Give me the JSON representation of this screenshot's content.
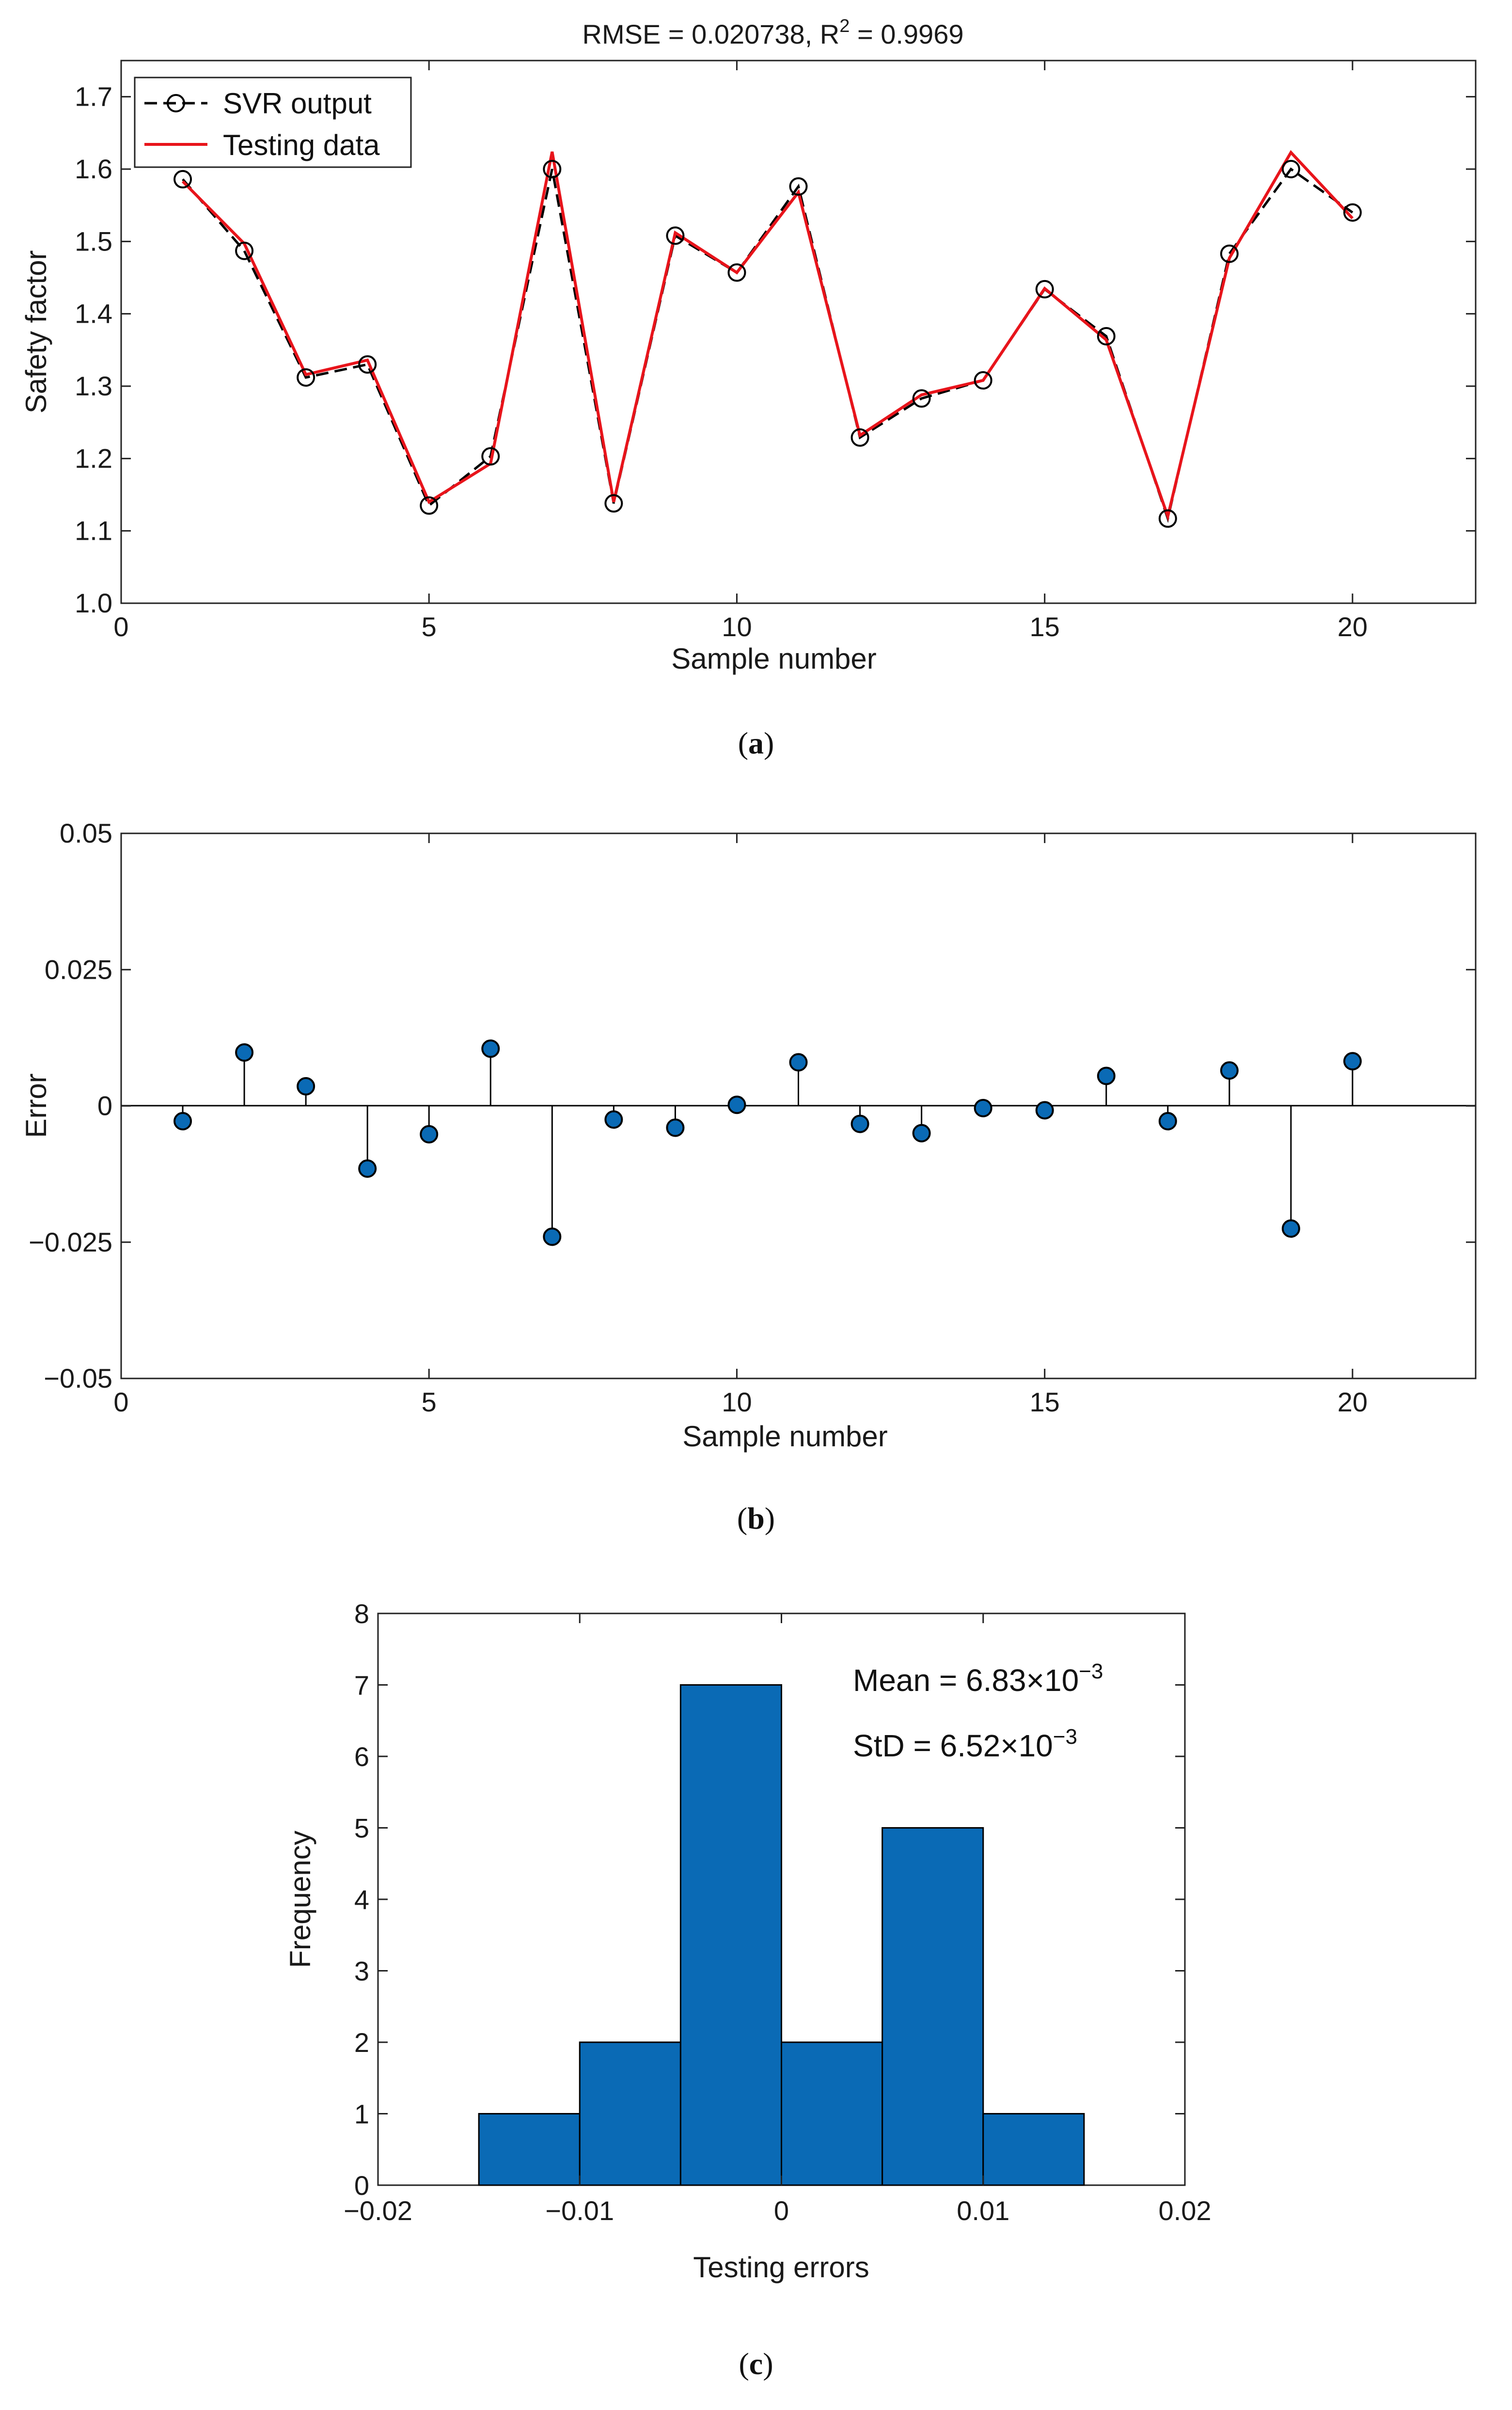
{
  "chart_data": [
    {
      "id": "a",
      "type": "line",
      "caption": "a",
      "title": "RMSE = 0.020738, R",
      "title_sup": "2",
      "title_tail": " = 0.9969",
      "xlabel": "Sample number",
      "ylabel": "Safety factor",
      "xlim": [
        0,
        22
      ],
      "ylim": [
        1.0,
        1.75
      ],
      "xticks": [
        0,
        5,
        10,
        15,
        20
      ],
      "yticks": [
        1.0,
        1.1,
        1.2,
        1.3,
        1.4,
        1.5,
        1.6,
        1.7
      ],
      "ytick_labels": [
        "1.0",
        "1.1",
        "1.2",
        "1.3",
        "1.4",
        "1.5",
        "1.6",
        "1.7"
      ],
      "legend_position": "top-left",
      "x": [
        1,
        2,
        3,
        4,
        5,
        6,
        7,
        8,
        9,
        10,
        11,
        12,
        13,
        14,
        15,
        16,
        17,
        18,
        19,
        20
      ],
      "series": [
        {
          "name": "SVR output",
          "style": "dashed-black-circles",
          "color": "#000000",
          "values": [
            1.586,
            1.487,
            1.312,
            1.33,
            1.135,
            1.203,
            1.6,
            1.138,
            1.508,
            1.457,
            1.576,
            1.229,
            1.283,
            1.308,
            1.434,
            1.369,
            1.117,
            1.483,
            1.6,
            1.54
          ]
        },
        {
          "name": "Testing data",
          "style": "solid-red",
          "color": "#e8141b",
          "values": [
            1.583,
            1.497,
            1.316,
            1.336,
            1.14,
            1.193,
            1.624,
            1.14,
            1.512,
            1.457,
            1.568,
            1.232,
            1.288,
            1.308,
            1.435,
            1.364,
            1.12,
            1.477,
            1.623,
            1.532
          ]
        }
      ]
    },
    {
      "id": "b",
      "type": "stem",
      "caption": "b",
      "xlabel": "Sample number",
      "ylabel": "Error",
      "xlim": [
        0,
        22
      ],
      "ylim": [
        -0.05,
        0.05
      ],
      "xticks": [
        0,
        5,
        10,
        15,
        20
      ],
      "yticks": [
        -0.05,
        -0.025,
        0,
        0.025,
        0.05
      ],
      "ytick_labels": [
        "−0.05",
        "−0.025",
        "0",
        "0.025",
        "0.05"
      ],
      "marker_color": "#0a6ab5",
      "x": [
        1,
        2,
        3,
        4,
        5,
        6,
        7,
        8,
        9,
        10,
        11,
        12,
        13,
        14,
        15,
        16,
        17,
        18,
        19,
        20
      ],
      "values": [
        -0.0028,
        0.0098,
        0.0036,
        -0.0115,
        -0.0052,
        0.0105,
        -0.024,
        -0.0025,
        -0.004,
        0.0002,
        0.008,
        -0.0033,
        -0.005,
        -0.0004,
        -0.0008,
        0.0055,
        -0.0028,
        0.0065,
        -0.0225,
        0.0082
      ]
    },
    {
      "id": "c",
      "type": "histogram",
      "caption": "c",
      "xlabel": "Testing errors",
      "ylabel": "Frequency",
      "xlim": [
        -0.02,
        0.02
      ],
      "ylim": [
        0,
        8
      ],
      "xticks": [
        -0.02,
        -0.01,
        0,
        0.01,
        0.02
      ],
      "xtick_labels": [
        "−0.02",
        "−0.01",
        "0",
        "0.01",
        "0.02"
      ],
      "yticks": [
        0,
        1,
        2,
        3,
        4,
        5,
        6,
        7,
        8
      ],
      "ytick_labels": [
        "0",
        "1",
        "2",
        "3",
        "4",
        "5",
        "6",
        "7",
        "8"
      ],
      "bar_color": "#0a6ab5",
      "bin_edges": [
        -0.015,
        -0.01,
        -0.005,
        0,
        0.005,
        0.01,
        0.015
      ],
      "counts": [
        1,
        2,
        7,
        2,
        5,
        1
      ],
      "annotations": [
        {
          "prefix": "Mean = 6.83×10",
          "sup": "−3"
        },
        {
          "prefix": "StD = 6.52×10",
          "sup": "−3"
        }
      ]
    }
  ]
}
